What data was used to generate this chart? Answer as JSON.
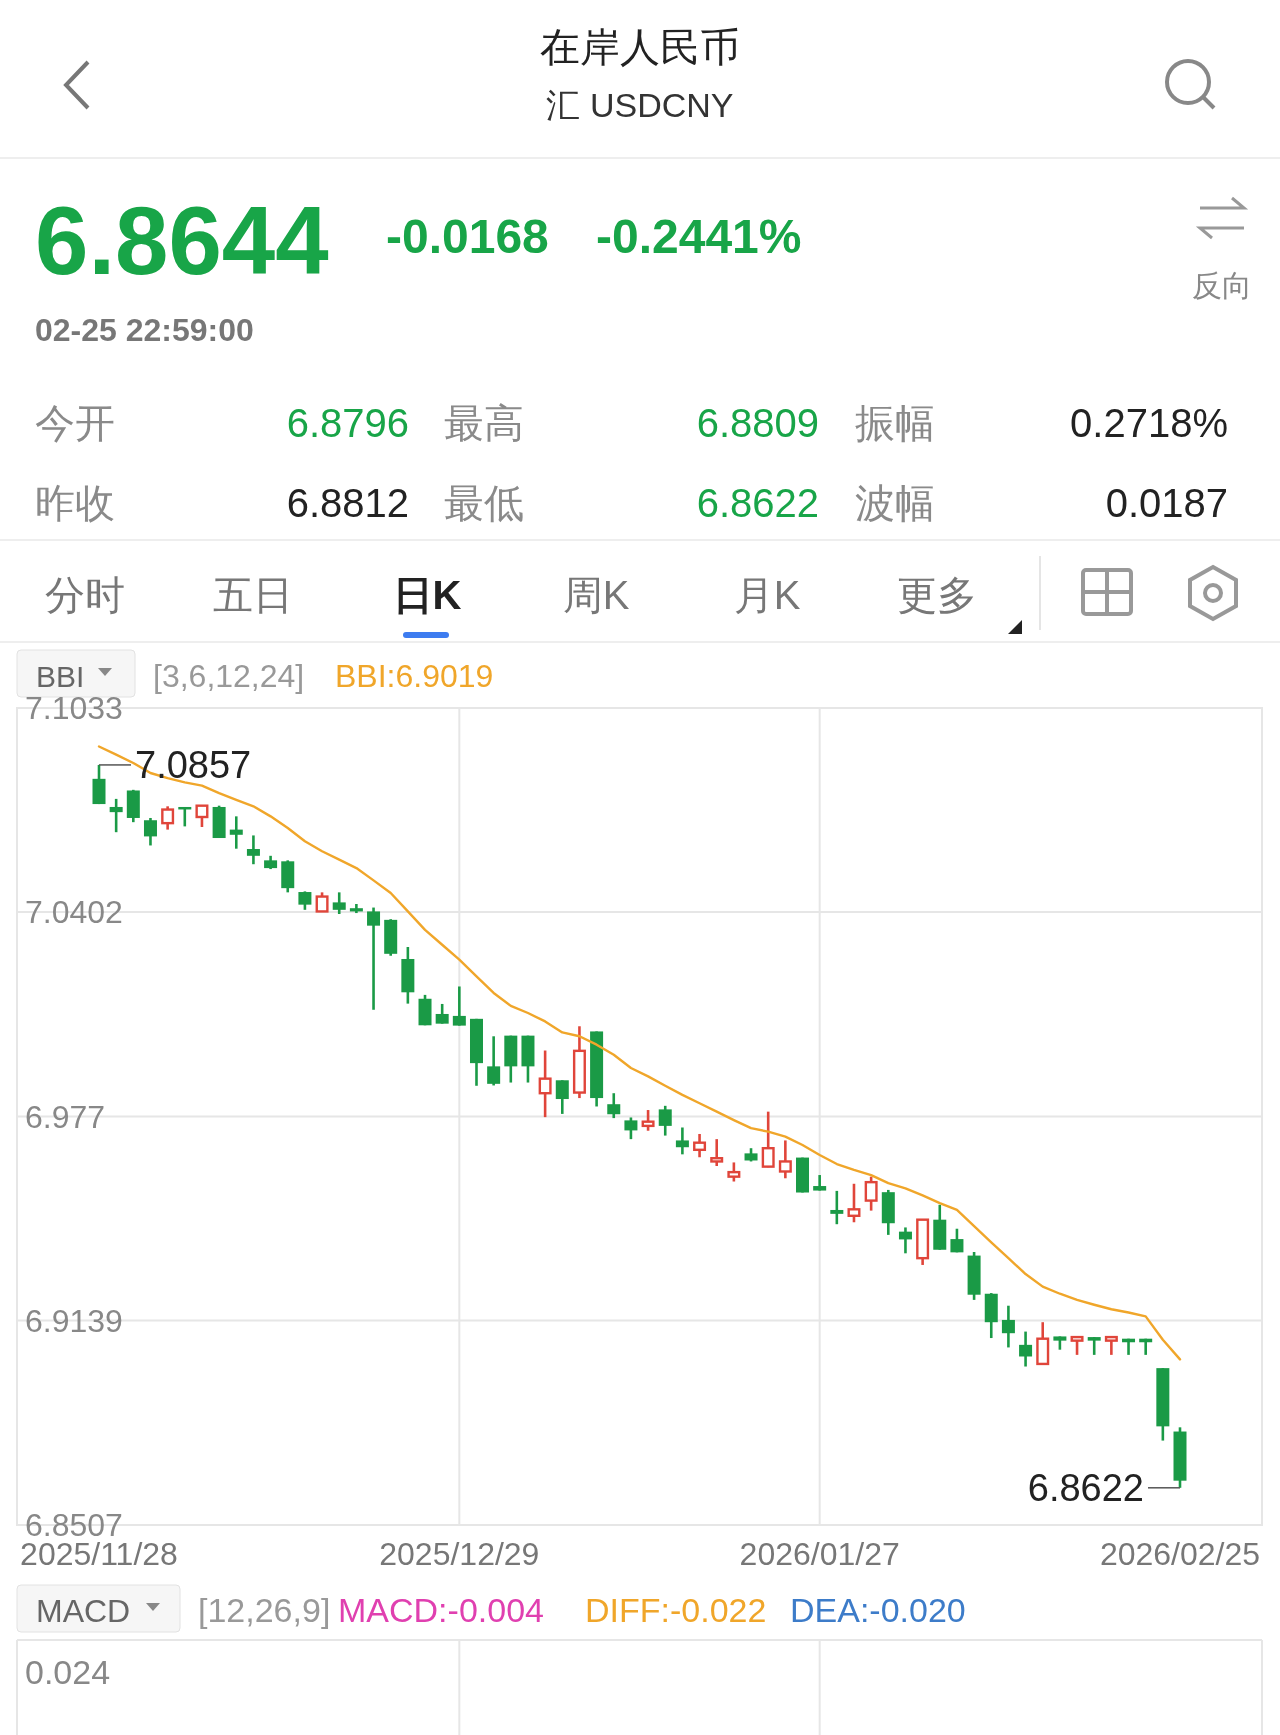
{
  "chart_data": {
    "type": "candlestick",
    "title": "在岸人民币",
    "subtitle": "汇 USDCNY",
    "categories": [
      "2025/11/28",
      null,
      null,
      null,
      null,
      null,
      null,
      null,
      null,
      null,
      null,
      null,
      null,
      null,
      null,
      null,
      null,
      null,
      null,
      null,
      null,
      "2025/12/29",
      null,
      null,
      null,
      null,
      null,
      null,
      null,
      null,
      null,
      null,
      null,
      null,
      null,
      null,
      null,
      null,
      null,
      null,
      null,
      null,
      "2026/01/27",
      null,
      null,
      null,
      null,
      null,
      null,
      null,
      null,
      null,
      null,
      null,
      null,
      null,
      null,
      null,
      null,
      null,
      null,
      null,
      null,
      "2026/02/25"
    ],
    "ohlc": [
      [
        7.0814,
        7.0857,
        7.0736,
        7.0736
      ],
      [
        7.0727,
        7.0752,
        7.0649,
        7.0711
      ],
      [
        7.0778,
        7.078,
        7.068,
        7.0693
      ],
      [
        7.0686,
        7.0693,
        7.0608,
        7.0636
      ],
      [
        7.0677,
        7.0729,
        7.0657,
        7.0719
      ],
      [
        7.0727,
        7.0727,
        7.0667,
        7.0721
      ],
      [
        7.0696,
        7.0731,
        7.0665,
        7.0731
      ],
      [
        7.0727,
        7.0731,
        7.0631,
        7.0631
      ],
      [
        7.0657,
        7.0698,
        7.0598,
        7.0641
      ],
      [
        7.0597,
        7.0639,
        7.055,
        7.0576
      ],
      [
        7.0562,
        7.0576,
        7.0535,
        7.0538
      ],
      [
        7.0559,
        7.0562,
        7.0463,
        7.0476
      ],
      [
        7.0464,
        7.0466,
        7.0409,
        7.0425
      ],
      [
        7.0404,
        7.0463,
        7.0404,
        7.045
      ],
      [
        7.0432,
        7.0463,
        7.0396,
        7.0409
      ],
      [
        7.0414,
        7.0427,
        7.0399,
        7.0404
      ],
      [
        7.0404,
        7.0416,
        7.01,
        7.036
      ],
      [
        7.0378,
        7.038,
        7.0267,
        7.0273
      ],
      [
        7.0257,
        7.0294,
        7.0119,
        7.0154
      ],
      [
        7.0134,
        7.0146,
        7.0052,
        7.0052
      ],
      [
        7.0087,
        7.0118,
        7.0057,
        7.0057
      ],
      [
        7.0081,
        7.0172,
        7.0051,
        7.0051
      ],
      [
        7.0072,
        7.0072,
        6.9865,
        6.9935
      ],
      [
        6.9925,
        7.0018,
        6.9866,
        6.9871
      ],
      [
        7.002,
        7.002,
        6.9875,
        6.9925
      ],
      [
        7.002,
        7.002,
        6.9875,
        6.9925
      ],
      [
        6.9842,
        6.9974,
        6.9768,
        6.9887
      ],
      [
        6.9882,
        6.9882,
        6.9778,
        6.9824
      ],
      [
        6.9844,
        7.0049,
        6.9827,
        6.9973
      ],
      [
        7.0033,
        7.0033,
        6.9801,
        6.9827
      ],
      [
        6.9808,
        6.9842,
        6.9765,
        6.9777
      ],
      [
        6.9758,
        6.9767,
        6.97,
        6.9727
      ],
      [
        6.9741,
        6.979,
        6.9726,
        6.9754
      ],
      [
        6.9792,
        6.9803,
        6.9711,
        6.9741
      ],
      [
        6.9696,
        6.9736,
        6.9653,
        6.9675
      ],
      [
        6.9667,
        6.9716,
        6.9644,
        6.9689
      ],
      [
        6.9631,
        6.97,
        6.9617,
        6.9641
      ],
      [
        6.9584,
        6.9628,
        6.9569,
        6.9598
      ],
      [
        6.9656,
        6.9672,
        6.9631,
        6.9634
      ],
      [
        6.9615,
        6.9785,
        6.9613,
        6.9672
      ],
      [
        6.96,
        6.9696,
        6.9579,
        6.9631
      ],
      [
        6.9643,
        6.9643,
        6.9535,
        6.9535
      ],
      [
        6.9555,
        6.9589,
        6.9541,
        6.9541
      ],
      [
        6.9481,
        6.954,
        6.9437,
        6.9469
      ],
      [
        6.9463,
        6.9562,
        6.9443,
        6.9483
      ],
      [
        6.951,
        6.9584,
        6.9479,
        6.9567
      ],
      [
        6.9536,
        6.9543,
        6.9404,
        6.944
      ],
      [
        6.9414,
        6.9427,
        6.9347,
        6.939
      ],
      [
        6.9332,
        6.9451,
        6.9311,
        6.9451
      ],
      [
        6.9451,
        6.9497,
        6.9358,
        6.9358
      ],
      [
        6.9391,
        6.9423,
        6.935,
        6.935
      ],
      [
        6.934,
        6.9351,
        6.9203,
        6.9219
      ],
      [
        6.9222,
        6.9224,
        6.9085,
        6.9134
      ],
      [
        6.9141,
        6.9185,
        6.9056,
        6.91
      ],
      [
        6.9064,
        6.9105,
        6.8997,
        6.9028
      ],
      [
        6.9005,
        6.9134,
        6.9005,
        6.9083
      ],
      [
        6.909,
        6.909,
        6.9049,
        6.9077
      ],
      [
        6.9077,
        6.9088,
        6.9033,
        6.9088
      ],
      [
        6.9088,
        6.9088,
        6.9033,
        6.9077
      ],
      [
        6.9077,
        6.9088,
        6.9033,
        6.9088
      ],
      [
        6.9083,
        6.9083,
        6.9033,
        6.9072
      ],
      [
        6.9083,
        6.9083,
        6.9033,
        6.9072
      ],
      [
        6.8992,
        6.8992,
        6.8768,
        6.8812
      ],
      [
        6.8796,
        6.8809,
        6.8622,
        6.8644
      ]
    ],
    "colors": [
      "#1a9a46",
      "#1a9a46",
      "#1a9a46",
      "#1a9a46",
      "#e0453a",
      "#1a9a46",
      "#e0453a",
      "#1a9a46",
      "#1a9a46",
      "#1a9a46",
      "#1a9a46",
      "#1a9a46",
      "#1a9a46",
      "#e0453a",
      "#1a9a46",
      "#1a9a46",
      "#1a9a46",
      "#1a9a46",
      "#1a9a46",
      "#1a9a46",
      "#1a9a46",
      "#1a9a46",
      "#1a9a46",
      "#1a9a46",
      "#1a9a46",
      "#1a9a46",
      "#e0453a",
      "#1a9a46",
      "#e0453a",
      "#1a9a46",
      "#1a9a46",
      "#1a9a46",
      "#e0453a",
      "#1a9a46",
      "#1a9a46",
      "#e0453a",
      "#e0453a",
      "#e0453a",
      "#1a9a46",
      "#e0453a",
      "#e0453a",
      "#1a9a46",
      "#1a9a46",
      "#1a9a46",
      "#e0453a",
      "#e0453a",
      "#1a9a46",
      "#1a9a46",
      "#e0453a",
      "#1a9a46",
      "#1a9a46",
      "#1a9a46",
      "#1a9a46",
      "#1a9a46",
      "#1a9a46",
      "#e0453a",
      "#1a9a46",
      "#e0453a",
      "#1a9a46",
      "#e0453a",
      "#1a9a46",
      "#1a9a46",
      "#1a9a46",
      "#1a9a46"
    ],
    "series": [
      {
        "type": "line",
        "color": "#f0a62a",
        "values": [
          7.0914,
          7.0889,
          7.0863,
          7.0832,
          7.0816,
          7.0803,
          7.0793,
          7.077,
          7.0749,
          7.0729,
          7.0698,
          7.0662,
          7.0621,
          7.059,
          7.0564,
          7.0538,
          7.05,
          7.0461,
          7.0404,
          7.0347,
          7.0301,
          7.0255,
          7.0203,
          7.0152,
          7.0112,
          7.009,
          7.0064,
          7.003,
          7.0018,
          6.9992,
          6.9961,
          6.992,
          6.9894,
          6.9865,
          6.9837,
          6.9811,
          6.9785,
          6.9759,
          6.9734,
          6.9723,
          6.9708,
          6.9682,
          6.9651,
          6.9623,
          6.9605,
          6.9589,
          6.9564,
          6.9548,
          6.9526,
          6.9502,
          6.9481,
          6.9431,
          6.9381,
          6.9332,
          6.9283,
          6.9244,
          6.9222,
          6.9203,
          6.9188,
          6.9174,
          6.9164,
          6.9152,
          6.908,
          6.9019
        ]
      }
    ],
    "ylim": [
      6.8507,
      7.1033
    ],
    "yticks": [
      6.8507,
      6.9139,
      6.977,
      7.0402,
      7.1033
    ],
    "grid": true,
    "annotations": [
      "6.8644",
      "-0.0168",
      "-0.2441%",
      "02-25 22:59:00",
      "今开",
      "6.8796",
      "最高",
      "6.8809",
      "振幅",
      "0.2718%",
      "昨收",
      "6.8812",
      "最低",
      "6.8622",
      "波幅",
      "0.0187",
      "分时",
      "五日",
      "日K",
      "周K",
      "月K",
      "更多",
      "反向",
      "BBI",
      "[3,6,12,24]",
      "BBI:6.9019",
      "MACD",
      "[12,26,9]",
      "MACD:-0.004",
      "DIFF:-0.022",
      "DEA:-0.020",
      "0.024",
      {
        "text": "7.0857",
        "x": "2025/11/28",
        "y": 7.0857
      },
      {
        "text": "6.8622",
        "x": "2026/02/25",
        "y": 6.8622
      }
    ]
  }
}
